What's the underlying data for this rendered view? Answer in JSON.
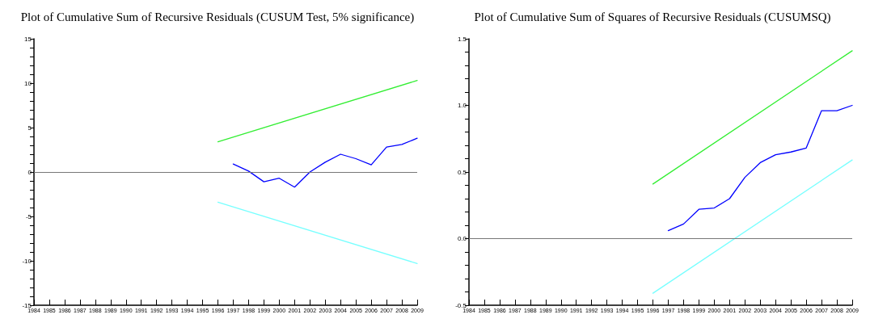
{
  "chart_data": [
    {
      "type": "line",
      "title": "Plot of Cumulative Sum of Recursive Residuals (CUSUM Test, 5% significance)",
      "marker": "none",
      "line_style": "solid",
      "grid": false,
      "series": [
        {
          "color": "#0000ff",
          "x": [
            1997,
            1998,
            1999,
            2000,
            2001,
            2002,
            2003,
            2004,
            2005,
            2006,
            2007,
            2008,
            2009
          ],
          "values": [
            0.9,
            0.1,
            -1.1,
            -0.7,
            -1.7,
            0,
            1.1,
            2.0,
            1.5,
            0.8,
            2.8,
            3.1,
            3.8
          ]
        },
        {
          "color": "#33ee33",
          "x": [
            1996,
            2009
          ],
          "values": [
            3.4,
            10.3
          ]
        },
        {
          "color": "#77ffff",
          "x": [
            1996,
            2009
          ],
          "values": [
            -3.4,
            -10.3
          ]
        }
      ],
      "ref_lines": [
        {
          "axis": "y",
          "value": 0,
          "color": "#777777"
        }
      ],
      "xlim": [
        1984,
        2009
      ],
      "xticks": [
        1984,
        1985,
        1986,
        1987,
        1988,
        1989,
        1990,
        1991,
        1992,
        1993,
        1994,
        1995,
        1996,
        1997,
        1998,
        1999,
        2000,
        2001,
        2002,
        2003,
        2004,
        2005,
        2006,
        2007,
        2008,
        2009
      ],
      "ylim": [
        -15,
        15
      ],
      "yticks": [
        -15,
        {
          "value": -14,
          "label": null
        },
        {
          "value": -13,
          "label": null
        },
        {
          "value": -12,
          "label": null
        },
        {
          "value": -11,
          "label": null
        },
        -10,
        {
          "value": -9,
          "label": null
        },
        {
          "value": -8,
          "label": null
        },
        {
          "value": -7,
          "label": null
        },
        {
          "value": -6,
          "label": null
        },
        -5,
        {
          "value": -4,
          "label": null
        },
        {
          "value": -3,
          "label": null
        },
        {
          "value": -2,
          "label": null
        },
        {
          "value": -1,
          "label": null
        },
        0,
        {
          "value": 1,
          "label": null
        },
        {
          "value": 2,
          "label": null
        },
        {
          "value": 3,
          "label": null
        },
        {
          "value": 4,
          "label": null
        },
        5,
        {
          "value": 6,
          "label": null
        },
        {
          "value": 7,
          "label": null
        },
        {
          "value": 8,
          "label": null
        },
        {
          "value": 9,
          "label": null
        },
        10,
        {
          "value": 11,
          "label": null
        },
        {
          "value": 12,
          "label": null
        },
        {
          "value": 13,
          "label": null
        },
        {
          "value": 14,
          "label": null
        },
        15
      ]
    },
    {
      "type": "line",
      "title": "Plot of Cumulative Sum of Squares of Recursive Residuals (CUSUMSQ)",
      "marker": "none",
      "line_style": "solid",
      "grid": false,
      "series": [
        {
          "color": "#0000ff",
          "x": [
            1997,
            1998,
            1999,
            2000,
            2001,
            2002,
            2003,
            2004,
            2005,
            2006,
            2007,
            2008,
            2009
          ],
          "values": [
            0.06,
            0.11,
            0.22,
            0.23,
            0.3,
            0.46,
            0.57,
            0.63,
            0.65,
            0.68,
            0.96,
            0.96,
            1.0
          ]
        },
        {
          "color": "#33ee33",
          "x": [
            1996,
            2009
          ],
          "values": [
            0.41,
            1.41
          ]
        },
        {
          "color": "#77ffff",
          "x": [
            1996,
            2009
          ],
          "values": [
            -0.41,
            0.59
          ]
        }
      ],
      "ref_lines": [
        {
          "axis": "y",
          "value": 0,
          "color": "#777777"
        }
      ],
      "xlim": [
        1984,
        2009
      ],
      "xticks": [
        1984,
        1985,
        1986,
        1987,
        1988,
        1989,
        1990,
        1991,
        1992,
        1993,
        1994,
        1995,
        1996,
        1997,
        1998,
        1999,
        2000,
        2001,
        2002,
        2003,
        2004,
        2005,
        2006,
        2007,
        2008,
        2009
      ],
      "ylim": [
        -0.5,
        1.5
      ],
      "yticks": [
        {
          "value": -0.5,
          "label": "-0.5"
        },
        {
          "value": -0.4,
          "label": null
        },
        {
          "value": -0.3,
          "label": null
        },
        {
          "value": -0.2,
          "label": null
        },
        {
          "value": -0.1,
          "label": null
        },
        {
          "value": 0,
          "label": "0.0"
        },
        {
          "value": 0.1,
          "label": null
        },
        {
          "value": 0.2,
          "label": null
        },
        {
          "value": 0.3,
          "label": null
        },
        {
          "value": 0.4,
          "label": null
        },
        {
          "value": 0.5,
          "label": "0.5"
        },
        {
          "value": 0.6,
          "label": null
        },
        {
          "value": 0.7,
          "label": null
        },
        {
          "value": 0.8,
          "label": null
        },
        {
          "value": 0.9,
          "label": null
        },
        {
          "value": 1.0,
          "label": "1.0"
        },
        {
          "value": 1.1,
          "label": null
        },
        {
          "value": 1.2,
          "label": null
        },
        {
          "value": 1.3,
          "label": null
        },
        {
          "value": 1.4,
          "label": null
        },
        {
          "value": 1.5,
          "label": "1.5"
        }
      ]
    }
  ]
}
